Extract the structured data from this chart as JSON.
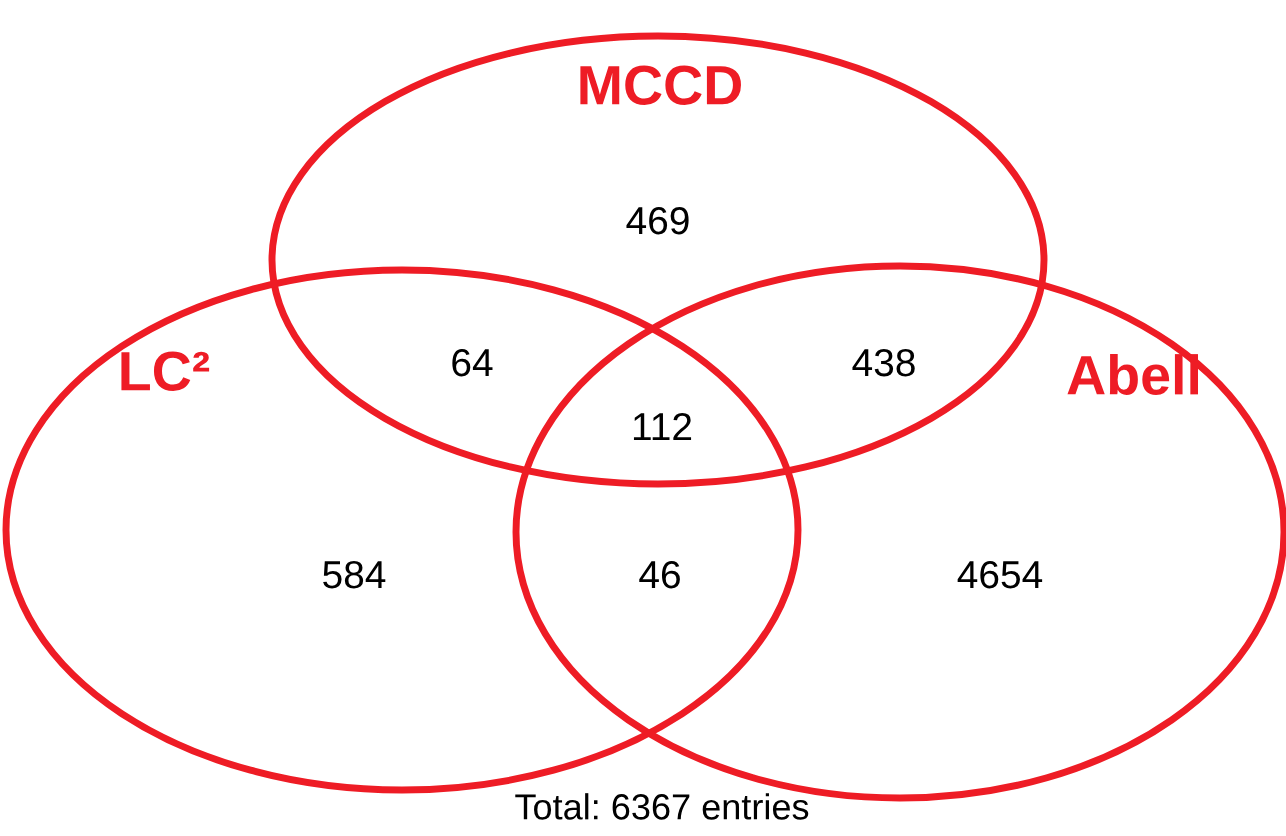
{
  "chart_data": {
    "type": "other",
    "categories": [
      null,
      null,
      null,
      null,
      null,
      null,
      null
    ],
    "values": [
      469,
      64,
      438,
      112,
      584,
      46,
      4654
    ],
    "data_labels": true,
    "color": "#ee1c25",
    "annotations": [
      "MCCD",
      "LC²",
      "Abell",
      "Total: 6367 entries"
    ]
  }
}
